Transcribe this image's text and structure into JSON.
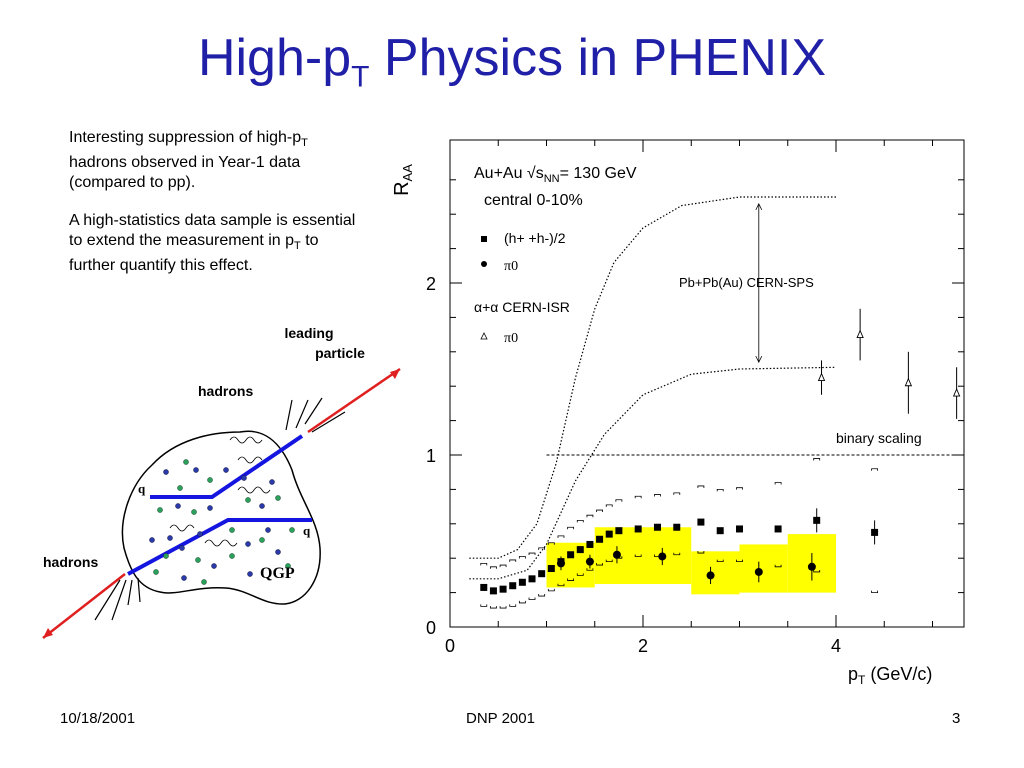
{
  "slide": {
    "title_main": "High-p",
    "title_sub": "T",
    "title_rest": " Physics in PHENIX",
    "bullet1": {
      "a": "Interesting suppression of high-p",
      "sub": "T",
      "b": " hadrons observed in Year-1 data (compared to pp)."
    },
    "bullet2": {
      "a": "A high-statistics data sample is essential to extend the measurement in p",
      "sub": "T",
      "b": " to further quantify this effect."
    },
    "footer_date": "10/18/2001",
    "footer_event": "DNP 2001",
    "footer_page": "3"
  },
  "diagram": {
    "leading_particle": [
      "leading",
      "particle"
    ],
    "hadrons_top": "hadrons",
    "hadrons_bottom": "hadrons",
    "q_left": "q",
    "q_right": "q",
    "qgp": "QGP"
  },
  "chart_data": {
    "type": "scatter",
    "xlabel": "pT (GeV/c)",
    "ylabel": "RAA",
    "xlim": [
      0,
      5.3
    ],
    "ylim": [
      0,
      2.85
    ],
    "xticks": [
      "0",
      "2",
      "4"
    ],
    "yticks": [
      "0",
      "1",
      "2"
    ],
    "legend": {
      "header_sys": "Au+Au",
      "header_energy": "= 130 GeV",
      "header_centrality": "central 0-10%",
      "entry_charged": "(h+ +h-)/2",
      "entry_pi0": "π0",
      "isr_label": "α+α CERN-ISR",
      "entry_isr_pi0": "π0"
    },
    "annotations": {
      "sps": "Pb+Pb(Au) CERN-SPS",
      "binary": "binary scaling"
    },
    "binary_scaling": 1.0,
    "charged_hadrons": [
      {
        "x": 0.35,
        "y": 0.23
      },
      {
        "x": 0.45,
        "y": 0.21
      },
      {
        "x": 0.55,
        "y": 0.22
      },
      {
        "x": 0.65,
        "y": 0.24
      },
      {
        "x": 0.75,
        "y": 0.26
      },
      {
        "x": 0.85,
        "y": 0.28
      },
      {
        "x": 0.95,
        "y": 0.31
      },
      {
        "x": 1.05,
        "y": 0.34
      },
      {
        "x": 1.15,
        "y": 0.38
      },
      {
        "x": 1.25,
        "y": 0.42
      },
      {
        "x": 1.35,
        "y": 0.45
      },
      {
        "x": 1.45,
        "y": 0.48
      },
      {
        "x": 1.55,
        "y": 0.51
      },
      {
        "x": 1.65,
        "y": 0.54
      },
      {
        "x": 1.75,
        "y": 0.56
      },
      {
        "x": 1.95,
        "y": 0.57
      },
      {
        "x": 2.15,
        "y": 0.58
      },
      {
        "x": 2.35,
        "y": 0.58
      },
      {
        "x": 2.6,
        "y": 0.61
      },
      {
        "x": 2.8,
        "y": 0.56
      },
      {
        "x": 3.0,
        "y": 0.57
      },
      {
        "x": 3.4,
        "y": 0.57
      },
      {
        "x": 3.8,
        "y": 0.62
      },
      {
        "x": 4.4,
        "y": 0.55
      }
    ],
    "charged_sys_upper": [
      0.37,
      0.35,
      0.36,
      0.39,
      0.41,
      0.43,
      0.46,
      0.49,
      0.53,
      0.58,
      0.62,
      0.65,
      0.68,
      0.71,
      0.74,
      0.76,
      0.77,
      0.78,
      0.82,
      0.8,
      0.81,
      0.84,
      0.98,
      0.92
    ],
    "charged_sys_lower": [
      0.12,
      0.11,
      0.11,
      0.12,
      0.14,
      0.16,
      0.18,
      0.21,
      0.24,
      0.27,
      0.3,
      0.33,
      0.36,
      0.38,
      0.4,
      0.41,
      0.41,
      0.42,
      0.43,
      0.38,
      0.38,
      0.35,
      0.32,
      0.2
    ],
    "pi0": [
      {
        "x": 1.15,
        "y": 0.37,
        "err": 0.04
      },
      {
        "x": 1.45,
        "y": 0.38,
        "err": 0.04
      },
      {
        "x": 1.73,
        "y": 0.42,
        "err": 0.05
      },
      {
        "x": 2.2,
        "y": 0.41,
        "err": 0.05
      },
      {
        "x": 2.7,
        "y": 0.3,
        "err": 0.05
      },
      {
        "x": 3.2,
        "y": 0.32,
        "err": 0.06
      },
      {
        "x": 3.75,
        "y": 0.35,
        "err": 0.08
      }
    ],
    "pi0_sys_boxes": [
      {
        "x0": 1.0,
        "x1": 1.5,
        "y0": 0.23,
        "y1": 0.49
      },
      {
        "x0": 1.5,
        "x1": 2.5,
        "y0": 0.25,
        "y1": 0.58
      },
      {
        "x0": 2.5,
        "x1": 3.0,
        "y0": 0.19,
        "y1": 0.44
      },
      {
        "x0": 3.0,
        "x1": 3.5,
        "y0": 0.2,
        "y1": 0.48
      },
      {
        "x0": 3.5,
        "x1": 4.0,
        "y0": 0.2,
        "y1": 0.54
      }
    ],
    "isr_pi0": [
      {
        "x": 3.85,
        "y": 1.45,
        "err": 0.1
      },
      {
        "x": 4.25,
        "y": 1.7,
        "err": 0.15
      },
      {
        "x": 4.75,
        "y": 1.42,
        "err": 0.18
      },
      {
        "x": 5.25,
        "y": 1.36,
        "err": 0.15
      }
    ],
    "sps_upper": [
      {
        "x": 0.2,
        "y": 0.4
      },
      {
        "x": 0.5,
        "y": 0.4
      },
      {
        "x": 0.7,
        "y": 0.45
      },
      {
        "x": 0.9,
        "y": 0.6
      },
      {
        "x": 1.1,
        "y": 0.95
      },
      {
        "x": 1.3,
        "y": 1.45
      },
      {
        "x": 1.5,
        "y": 1.85
      },
      {
        "x": 1.7,
        "y": 2.12
      },
      {
        "x": 2.0,
        "y": 2.32
      },
      {
        "x": 2.4,
        "y": 2.45
      },
      {
        "x": 3.0,
        "y": 2.5
      },
      {
        "x": 4.0,
        "y": 2.5
      }
    ],
    "sps_lower": [
      {
        "x": 0.2,
        "y": 0.28
      },
      {
        "x": 0.5,
        "y": 0.28
      },
      {
        "x": 0.8,
        "y": 0.33
      },
      {
        "x": 1.0,
        "y": 0.48
      },
      {
        "x": 1.3,
        "y": 0.85
      },
      {
        "x": 1.6,
        "y": 1.12
      },
      {
        "x": 2.0,
        "y": 1.35
      },
      {
        "x": 2.5,
        "y": 1.47
      },
      {
        "x": 3.0,
        "y": 1.5
      },
      {
        "x": 4.0,
        "y": 1.51
      }
    ],
    "colors": {
      "sys_box": "#ffff00",
      "binary": "#000000",
      "title": "#1f1fa8"
    }
  }
}
